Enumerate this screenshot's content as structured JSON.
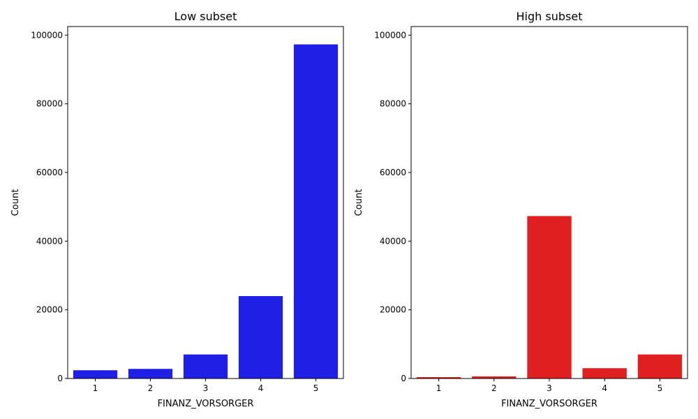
{
  "chart_data": [
    {
      "type": "bar",
      "title": "Low subset",
      "xlabel": "FINANZ_VORSORGER",
      "ylabel": "Count",
      "categories": [
        "1",
        "2",
        "3",
        "4",
        "5"
      ],
      "values": [
        2400,
        2800,
        7000,
        24000,
        97300
      ],
      "ylim": [
        0,
        102500
      ],
      "yticks": [
        0,
        20000,
        40000,
        60000,
        80000,
        100000
      ],
      "bar_color": "#1f1fe6",
      "grid": false
    },
    {
      "type": "bar",
      "title": "High subset",
      "xlabel": "FINANZ_VORSORGER",
      "ylabel": "Count",
      "categories": [
        "1",
        "2",
        "3",
        "4",
        "5"
      ],
      "values": [
        400,
        600,
        47300,
        3000,
        7000
      ],
      "ylim": [
        0,
        102500
      ],
      "yticks": [
        0,
        20000,
        40000,
        60000,
        80000,
        100000
      ],
      "bar_color": "#e02020",
      "grid": false
    }
  ]
}
